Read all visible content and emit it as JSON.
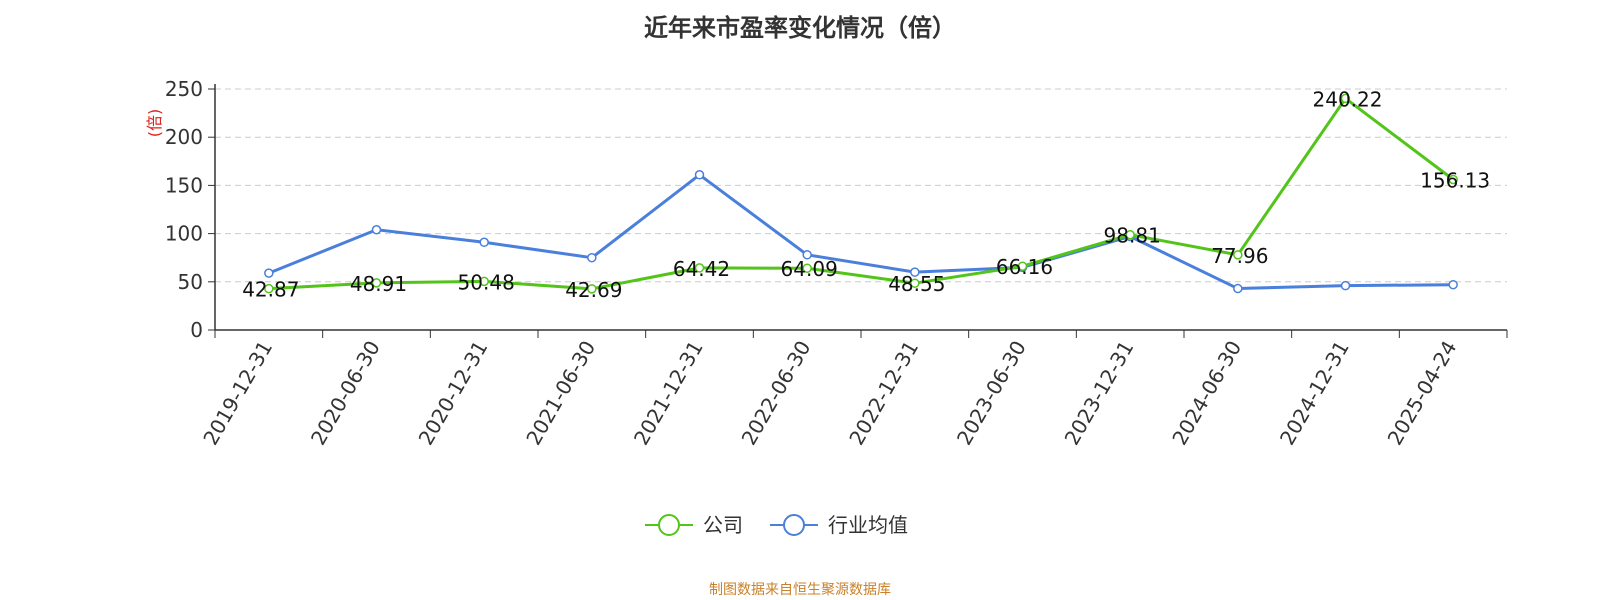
{
  "chart_data": {
    "type": "line",
    "title": "近年来市盈率变化情况（倍）",
    "ylabel": "(倍)",
    "xlabel": "",
    "categories": [
      "2019-12-31",
      "2020-06-30",
      "2020-12-31",
      "2021-06-30",
      "2021-12-31",
      "2022-06-30",
      "2022-12-31",
      "2023-06-30",
      "2023-12-31",
      "2024-06-30",
      "2024-12-31",
      "2025-04-24"
    ],
    "yticks": [
      0,
      50,
      100,
      150,
      200,
      250
    ],
    "ylim": [
      0,
      250
    ],
    "grid": true,
    "legend_position": "bottom",
    "series": [
      {
        "name": "公司",
        "color": "#52c41a",
        "values": [
          42.87,
          48.91,
          50.48,
          42.69,
          64.42,
          64.09,
          48.55,
          66.16,
          98.81,
          77.96,
          240.22,
          156.13
        ],
        "labels": [
          "42.87",
          "48.91",
          "50.48",
          "42.69",
          "64.42",
          "64.09",
          "48.55",
          "66.16",
          "98.81",
          "77.96",
          "240.22",
          "156.13"
        ]
      },
      {
        "name": "行业均值",
        "color": "#4a7fdc",
        "values": [
          59,
          104,
          91,
          75,
          161,
          78,
          60,
          65,
          97,
          43,
          46,
          47
        ]
      }
    ]
  },
  "footer": {
    "source": "制图数据来自恒生聚源数据库"
  }
}
